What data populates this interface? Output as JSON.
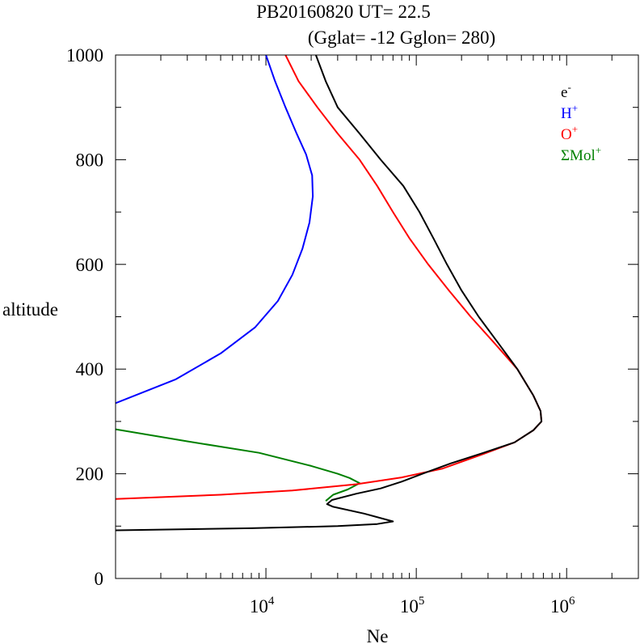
{
  "chart_data": {
    "type": "line",
    "title": "PB20160820   UT=  22.5",
    "subtitle": "(Gglat= -12   Gglon=  280)",
    "xlabel": "Ne",
    "ylabel": "altitude",
    "x_scale": "log",
    "xlim": [
      1000,
      3000000
    ],
    "ylim": [
      0,
      1000
    ],
    "y_ticks": [
      0,
      200,
      400,
      600,
      800,
      1000
    ],
    "x_ticks": [
      {
        "value": 10000,
        "base": "10",
        "exp": "4"
      },
      {
        "value": 100000,
        "base": "10",
        "exp": "5"
      },
      {
        "value": 1000000,
        "base": "10",
        "exp": "6"
      }
    ],
    "legend_position": "top-right",
    "series": [
      {
        "name": "e-",
        "base": "e",
        "sup": "-",
        "color": "#000000",
        "points": [
          [
            1000,
            92
          ],
          [
            8000,
            96
          ],
          [
            30000,
            100
          ],
          [
            55000,
            104
          ],
          [
            70000,
            109
          ],
          [
            45000,
            124
          ],
          [
            28000,
            137
          ],
          [
            25500,
            142
          ],
          [
            27500,
            150
          ],
          [
            40000,
            162
          ],
          [
            58000,
            172
          ],
          [
            80000,
            185
          ],
          [
            110000,
            200
          ],
          [
            170000,
            220
          ],
          [
            280000,
            240
          ],
          [
            450000,
            260
          ],
          [
            600000,
            283
          ],
          [
            680000,
            300
          ],
          [
            670000,
            320
          ],
          [
            600000,
            350
          ],
          [
            470000,
            400
          ],
          [
            350000,
            450
          ],
          [
            260000,
            500
          ],
          [
            200000,
            550
          ],
          [
            160000,
            600
          ],
          [
            130000,
            650
          ],
          [
            105000,
            700
          ],
          [
            82000,
            750
          ],
          [
            58000,
            800
          ],
          [
            42000,
            850
          ],
          [
            30000,
            900
          ],
          [
            25000,
            950
          ],
          [
            21500,
            1000
          ]
        ]
      },
      {
        "name": "H+",
        "base": "H",
        "sup": "+",
        "color": "#0000ff",
        "points": [
          [
            1000,
            335
          ],
          [
            2500,
            380
          ],
          [
            5000,
            430
          ],
          [
            8500,
            480
          ],
          [
            12000,
            530
          ],
          [
            15000,
            580
          ],
          [
            17500,
            630
          ],
          [
            19500,
            680
          ],
          [
            20500,
            730
          ],
          [
            20300,
            770
          ],
          [
            18500,
            810
          ],
          [
            16000,
            850
          ],
          [
            13500,
            900
          ],
          [
            11500,
            950
          ],
          [
            10000,
            1000
          ]
        ]
      },
      {
        "name": "O+",
        "base": "O",
        "sup": "+",
        "color": "#ff0000",
        "points": [
          [
            1000,
            152
          ],
          [
            5000,
            160
          ],
          [
            15000,
            168
          ],
          [
            40000,
            180
          ],
          [
            80000,
            193
          ],
          [
            150000,
            210
          ],
          [
            280000,
            238
          ],
          [
            450000,
            260
          ],
          [
            600000,
            283
          ],
          [
            680000,
            300
          ],
          [
            670000,
            320
          ],
          [
            600000,
            350
          ],
          [
            470000,
            400
          ],
          [
            330000,
            450
          ],
          [
            230000,
            500
          ],
          [
            165000,
            550
          ],
          [
            120000,
            600
          ],
          [
            90000,
            650
          ],
          [
            70000,
            700
          ],
          [
            55000,
            750
          ],
          [
            42000,
            800
          ],
          [
            30000,
            850
          ],
          [
            22000,
            900
          ],
          [
            16500,
            950
          ],
          [
            13500,
            1000
          ]
        ]
      },
      {
        "name": "ΣMol+",
        "base": "ΣMol",
        "sup": "+",
        "color": "#008000",
        "points": [
          [
            1000,
            285
          ],
          [
            3000,
            262
          ],
          [
            9000,
            240
          ],
          [
            20000,
            215
          ],
          [
            30000,
            200
          ],
          [
            36000,
            192
          ],
          [
            42000,
            182
          ],
          [
            35000,
            170
          ],
          [
            28000,
            160
          ],
          [
            25000,
            148
          ]
        ]
      }
    ]
  }
}
